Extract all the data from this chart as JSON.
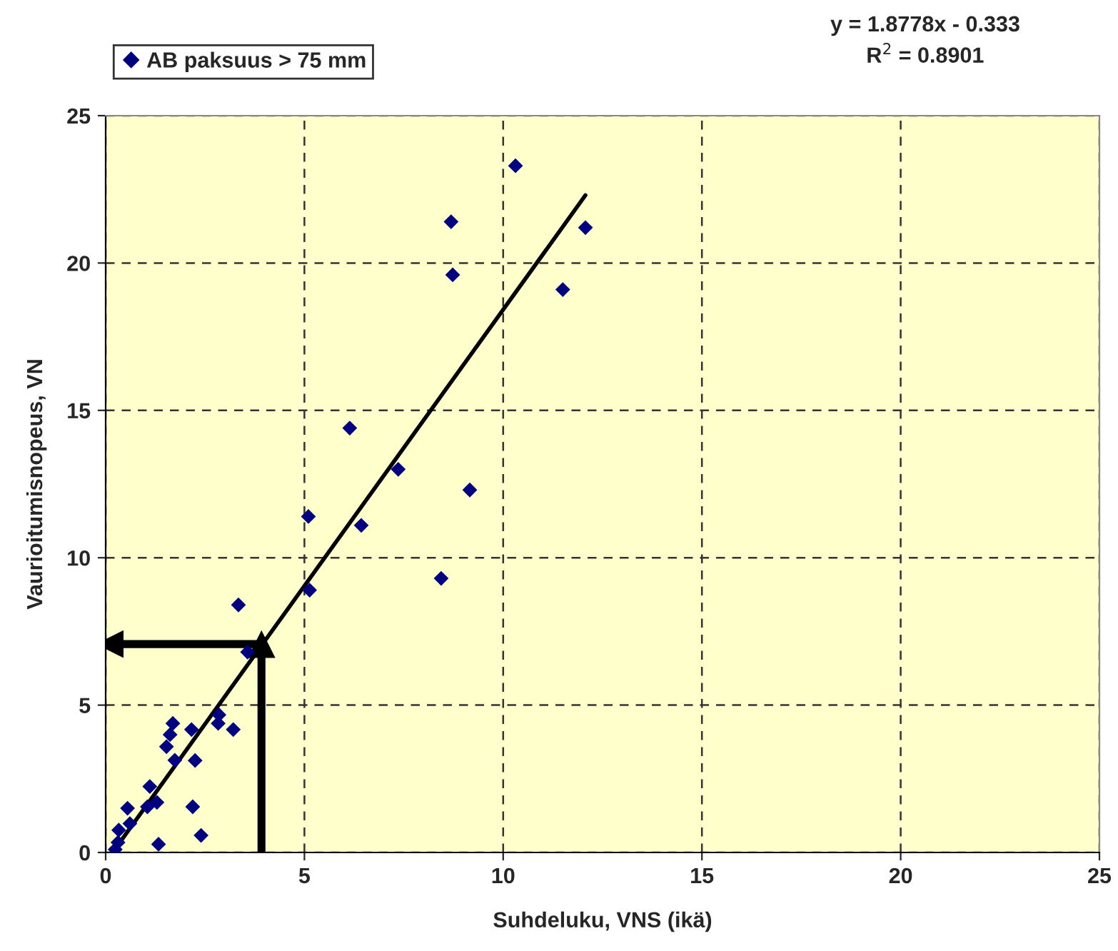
{
  "chart_data": {
    "type": "scatter",
    "xlabel": "Suhdeluku, VNS (ikä)",
    "ylabel": "Vaurioitumisnopeus, VN",
    "annotations": [
      "y = 1.8778x - 0.333",
      "R$^{2}$ = 0.8901"
    ],
    "xlim": [
      0,
      25
    ],
    "xticks": [
      0,
      5,
      10,
      15,
      20,
      25
    ],
    "ylim": [
      0,
      25
    ],
    "yticks": [
      0,
      5,
      10,
      15,
      20,
      25
    ],
    "grid": true,
    "legend": "top left",
    "series": [
      {
        "name": "AB paksuus > 75 mm",
        "marker": "diamond",
        "color": "#000080",
        "x": [
          10.31,
          8.69,
          8.73,
          12.07,
          11.5,
          6.14,
          7.36,
          9.16,
          5.1,
          6.43,
          5.13,
          8.44,
          3.34,
          3.57,
          2.85,
          2.83,
          3.21,
          1.69,
          2.16,
          1.62,
          1.53,
          1.74,
          2.25,
          1.11,
          1.29,
          1.05,
          0.55,
          2.19,
          0.61,
          0.33,
          0.31,
          0.24,
          2.4,
          1.33
        ],
        "values": [
          23.3,
          21.4,
          19.6,
          21.2,
          19.1,
          14.4,
          13.0,
          12.3,
          11.4,
          11.1,
          8.9,
          9.3,
          8.4,
          6.8,
          4.67,
          4.38,
          4.17,
          4.38,
          4.17,
          4.0,
          3.59,
          3.13,
          3.12,
          2.24,
          1.7,
          1.55,
          1.5,
          1.55,
          0.98,
          0.76,
          0.34,
          0.1,
          0.58,
          0.28
        ]
      },
      {
        "type": "line",
        "color": "#000000",
        "x": [
          0.25,
          12.07
        ],
        "values": [
          0.14,
          22.3
        ]
      },
      {
        "type": "line",
        "marker": "triangle",
        "color": "#000000",
        "x": [
          3.92,
          3.92
        ],
        "values": [
          0,
          7.07
        ]
      },
      {
        "type": "line",
        "marker": "triangle",
        "color": "#000000",
        "x": [
          3.92,
          0.1
        ],
        "values": [
          7.07,
          7.07
        ]
      }
    ]
  }
}
